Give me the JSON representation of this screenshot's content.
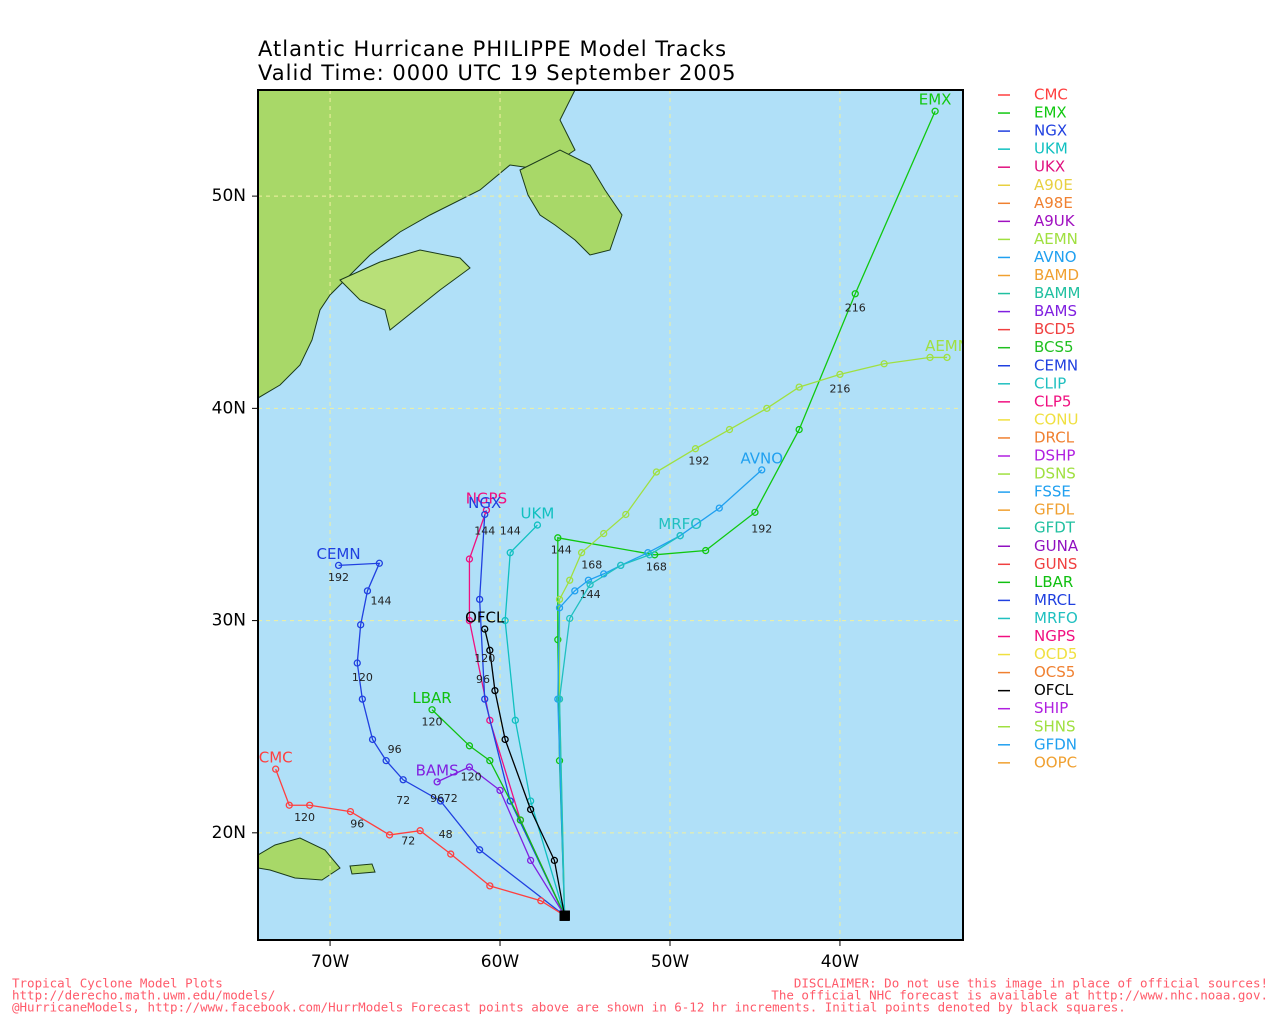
{
  "header": {
    "title": "Atlantic Hurricane PHILIPPE Model Tracks",
    "subtitle": "Valid Time: 0000 UTC 19 September 2005"
  },
  "map": {
    "lonlim": [
      -74.24,
      -32.76
    ],
    "latlim": [
      14.95,
      55
    ],
    "lonticks": [
      {
        "value": -70,
        "label": "70W"
      },
      {
        "value": -60,
        "label": "60W"
      },
      {
        "value": -50,
        "label": "50W"
      },
      {
        "value": -40,
        "label": "40W"
      }
    ],
    "latticks": [
      {
        "value": 20,
        "label": "20N"
      },
      {
        "value": 30,
        "label": "30N"
      },
      {
        "value": 40,
        "label": "40N"
      },
      {
        "value": 50,
        "label": "50N"
      }
    ],
    "grid": true
  },
  "legend": [
    {
      "name": "CMC",
      "color": "#ff3f3f"
    },
    {
      "name": "EMX",
      "color": "#10c810"
    },
    {
      "name": "NGX",
      "color": "#2040e0"
    },
    {
      "name": "UKM",
      "color": "#10c0c0"
    },
    {
      "name": "UKX",
      "color": "#e0107f"
    },
    {
      "name": "A90E",
      "color": "#e8d040"
    },
    {
      "name": "A98E",
      "color": "#f08030"
    },
    {
      "name": "A9UK",
      "color": "#a010c0"
    },
    {
      "name": "AEMN",
      "color": "#a0e040"
    },
    {
      "name": "AVNO",
      "color": "#20a0f0"
    },
    {
      "name": "BAMD",
      "color": "#f0a030"
    },
    {
      "name": "BAMM",
      "color": "#20c0a0"
    },
    {
      "name": "BAMS",
      "color": "#8020e0"
    },
    {
      "name": "BCD5",
      "color": "#f04040"
    },
    {
      "name": "BCS5",
      "color": "#20c020"
    },
    {
      "name": "CEMN",
      "color": "#2040e0"
    },
    {
      "name": "CLIP",
      "color": "#20c0c0"
    },
    {
      "name": "CLP5",
      "color": "#f01080"
    },
    {
      "name": "CONU",
      "color": "#f0e040"
    },
    {
      "name": "DRCL",
      "color": "#f08030"
    },
    {
      "name": "DSHP",
      "color": "#b020e0"
    },
    {
      "name": "DSNS",
      "color": "#a0e040"
    },
    {
      "name": "FSSE",
      "color": "#20a0f0"
    },
    {
      "name": "GFDL",
      "color": "#f0a030"
    },
    {
      "name": "GFDT",
      "color": "#20c0a0"
    },
    {
      "name": "GUNA",
      "color": "#9010c0"
    },
    {
      "name": "GUNS",
      "color": "#f04040"
    },
    {
      "name": "LBAR",
      "color": "#10c010"
    },
    {
      "name": "MRCL",
      "color": "#2040e0"
    },
    {
      "name": "MRFO",
      "color": "#20c0c0"
    },
    {
      "name": "NGPS",
      "color": "#f01080"
    },
    {
      "name": "OCD5",
      "color": "#f0e040"
    },
    {
      "name": "OCS5",
      "color": "#f08030"
    },
    {
      "name": "OFCL",
      "color": "#000000"
    },
    {
      "name": "SHIP",
      "color": "#b020e0"
    },
    {
      "name": "SHNS",
      "color": "#a0e040"
    },
    {
      "name": "GFDN",
      "color": "#20a0f0"
    },
    {
      "name": "OOPC",
      "color": "#f0a030"
    }
  ],
  "tracks": [
    {
      "model": "EMX",
      "color": "#10c810",
      "points": [
        [
          -56.2,
          16.1
        ],
        [
          -56.5,
          23.4
        ],
        [
          -56.6,
          29.1
        ],
        [
          -56.6,
          33.9
        ],
        [
          -50.9,
          33.1
        ],
        [
          -47.9,
          33.3
        ],
        [
          -45.0,
          35.1
        ],
        [
          -42.4,
          39.0
        ],
        [
          -39.1,
          45.4
        ],
        [
          -34.4,
          54.0
        ]
      ],
      "hours": [
        {
          "lon": -56.4,
          "lat": 33.3,
          "label": 144
        },
        {
          "lon": -44.6,
          "lat": 34.3,
          "label": 192
        },
        {
          "lon": -39.1,
          "lat": 44.7,
          "label": 216
        }
      ]
    },
    {
      "model": "AEMN",
      "color": "#a0e040",
      "points": [
        [
          -56.2,
          16.1
        ],
        [
          -56.5,
          26.3
        ],
        [
          -56.5,
          31.0
        ],
        [
          -55.9,
          31.9
        ],
        [
          -55.2,
          33.2
        ],
        [
          -53.9,
          34.1
        ],
        [
          -52.6,
          35.0
        ],
        [
          -50.8,
          37.0
        ],
        [
          -48.5,
          38.1
        ],
        [
          -46.5,
          39.0
        ],
        [
          -44.3,
          40.0
        ],
        [
          -42.4,
          41.0
        ],
        [
          -40.0,
          41.6
        ],
        [
          -37.4,
          42.1
        ],
        [
          -34.7,
          42.4
        ],
        [
          -33.7,
          42.4
        ]
      ],
      "hours": [
        {
          "lon": -54.6,
          "lat": 32.6,
          "label": 168
        },
        {
          "lon": -48.3,
          "lat": 37.5,
          "label": 192
        },
        {
          "lon": -40.0,
          "lat": 40.9,
          "label": 216
        }
      ]
    },
    {
      "model": "AVNO",
      "color": "#20a0f0",
      "points": [
        [
          -56.2,
          16.1
        ],
        [
          -56.6,
          26.3
        ],
        [
          -56.5,
          30.6
        ],
        [
          -55.6,
          31.4
        ],
        [
          -54.8,
          31.9
        ],
        [
          -53.9,
          32.2
        ],
        [
          -52.9,
          32.6
        ],
        [
          -51.3,
          33.2
        ],
        [
          -49.4,
          34.0
        ],
        [
          -47.1,
          35.3
        ],
        [
          -44.6,
          37.1
        ]
      ],
      "hours": [
        {
          "lon": -54.7,
          "lat": 31.2,
          "label": 144
        }
      ]
    },
    {
      "model": "MRFO",
      "color": "#20c0c0",
      "points": [
        [
          -56.2,
          16.1
        ],
        [
          -56.5,
          26.3
        ],
        [
          -55.9,
          30.1
        ],
        [
          -54.7,
          31.7
        ],
        [
          -52.9,
          32.6
        ],
        [
          -51.2,
          33.1
        ],
        [
          -49.4,
          34.0
        ]
      ],
      "hours": [
        {
          "lon": -50.8,
          "lat": 32.5,
          "label": 168
        }
      ]
    },
    {
      "model": "UKM",
      "color": "#10c0c0",
      "points": [
        [
          -56.2,
          16.1
        ],
        [
          -58.2,
          21.5
        ],
        [
          -59.1,
          25.3
        ],
        [
          -59.7,
          30.0
        ],
        [
          -59.4,
          33.2
        ],
        [
          -57.8,
          34.5
        ]
      ],
      "hours": [
        {
          "lon": -59.4,
          "lat": 34.2,
          "label": 144
        }
      ]
    },
    {
      "model": "NGPS",
      "color": "#f01080",
      "points": [
        [
          -56.2,
          16.1
        ],
        [
          -58.8,
          20.6
        ],
        [
          -60.6,
          25.3
        ],
        [
          -61.8,
          30.0
        ],
        [
          -61.8,
          32.9
        ],
        [
          -60.8,
          35.2
        ]
      ],
      "hours": [
        {
          "lon": -61.0,
          "lat": 27.2,
          "label": 96
        }
      ]
    },
    {
      "model": "NGX",
      "color": "#2040e0",
      "points": [
        [
          -56.2,
          16.1
        ],
        [
          -59.4,
          21.5
        ],
        [
          -60.9,
          26.3
        ],
        [
          -61.2,
          31.0
        ],
        [
          -60.9,
          35.0
        ]
      ],
      "hours": [
        {
          "lon": -60.9,
          "lat": 34.2,
          "label": 144
        }
      ]
    },
    {
      "model": "CEMN",
      "color": "#2040e0",
      "points": [
        [
          -56.2,
          16.1
        ],
        [
          -61.2,
          19.2
        ],
        [
          -63.5,
          21.5
        ],
        [
          -65.7,
          22.5
        ],
        [
          -66.7,
          23.4
        ],
        [
          -67.5,
          24.4
        ],
        [
          -68.1,
          26.3
        ],
        [
          -68.4,
          28.0
        ],
        [
          -68.2,
          29.8
        ],
        [
          -67.8,
          31.4
        ],
        [
          -67.1,
          32.7
        ],
        [
          -69.5,
          32.6
        ]
      ],
      "hours": [
        {
          "lon": -65.7,
          "lat": 21.5,
          "label": 72
        },
        {
          "lon": -66.2,
          "lat": 23.9,
          "label": 96
        },
        {
          "lon": -68.1,
          "lat": 27.3,
          "label": 120
        },
        {
          "lon": -67.0,
          "lat": 30.9,
          "label": 144
        },
        {
          "lon": -69.5,
          "lat": 32.0,
          "label": 192
        }
      ]
    },
    {
      "model": "CMC",
      "color": "#ff3f3f",
      "points": [
        [
          -56.2,
          16.1
        ],
        [
          -57.6,
          16.8
        ],
        [
          -60.6,
          17.5
        ],
        [
          -62.9,
          19.0
        ],
        [
          -64.7,
          20.1
        ],
        [
          -66.5,
          19.9
        ],
        [
          -68.8,
          21.0
        ],
        [
          -71.2,
          21.3
        ],
        [
          -72.4,
          21.3
        ],
        [
          -73.2,
          23.0
        ]
      ],
      "hours": [
        {
          "lon": -63.2,
          "lat": 19.9,
          "label": 48
        },
        {
          "lon": -65.4,
          "lat": 19.6,
          "label": 72
        },
        {
          "lon": -68.4,
          "lat": 20.4,
          "label": 96
        },
        {
          "lon": -71.5,
          "lat": 20.7,
          "label": 120
        }
      ]
    },
    {
      "model": "LBAR",
      "color": "#10c010",
      "points": [
        [
          -56.2,
          16.1
        ],
        [
          -58.8,
          20.6
        ],
        [
          -60.6,
          23.4
        ],
        [
          -61.8,
          24.1
        ],
        [
          -64.0,
          25.8
        ]
      ],
      "hours": [
        {
          "lon": -64.0,
          "lat": 25.2,
          "label": 120
        }
      ]
    },
    {
      "model": "BAMS",
      "color": "#8020e0",
      "points": [
        [
          -56.2,
          16.1
        ],
        [
          -58.2,
          18.7
        ],
        [
          -60.0,
          22.0
        ],
        [
          -61.8,
          23.1
        ],
        [
          -63.7,
          22.4
        ]
      ],
      "hours": [
        {
          "lon": -62.9,
          "lat": 21.6,
          "label": 72
        },
        {
          "lon": -63.7,
          "lat": 21.6,
          "label": 96
        },
        {
          "lon": -61.7,
          "lat": 22.6,
          "label": 120
        }
      ]
    },
    {
      "model": "OFCL",
      "color": "#000000",
      "points": [
        [
          -56.2,
          16.1
        ],
        [
          -56.8,
          18.7
        ],
        [
          -58.2,
          21.1
        ],
        [
          -59.7,
          24.4
        ],
        [
          -60.3,
          26.7
        ],
        [
          -60.6,
          28.6
        ],
        [
          -60.9,
          29.6
        ]
      ],
      "hours": [
        {
          "lon": -60.9,
          "lat": 28.2,
          "label": 120
        }
      ]
    }
  ],
  "footer": {
    "left": [
      "Tropical Cyclone Model Plots",
      "http://derecho.math.uwm.edu/models/",
      "@HurricaneModels, http://www.facebook.com/HurrModels  Forecast points above are shown in 6-12 hr increments. Initial points denoted by black squares."
    ],
    "right": [
      "DISCLAIMER: Do not use this image in place of official sources!",
      "The official NHC forecast is available at http://www.nhc.noaa.gov."
    ]
  }
}
